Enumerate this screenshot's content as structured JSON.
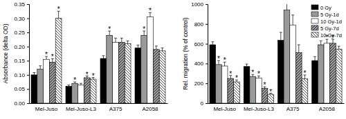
{
  "chart_data": [
    {
      "type": "bar",
      "y_label": "Absorbance (delta OD)",
      "categories": [
        "Mel-Juso",
        "Mel-Juso-L3",
        "A375",
        "A2058"
      ],
      "ylim": [
        0,
        0.35
      ],
      "yticks": [
        {
          "value": 0,
          "label": "0.00"
        },
        {
          "value": 0.05,
          "label": "0.05"
        },
        {
          "value": 0.1,
          "label": "0.10"
        },
        {
          "value": 0.15,
          "label": "0.15"
        },
        {
          "value": 0.2,
          "label": "0.20"
        },
        {
          "value": 0.25,
          "label": "0.25"
        },
        {
          "value": 0.3,
          "label": "0.30"
        },
        {
          "value": 0.35,
          "label": "0.35"
        }
      ],
      "series": [
        {
          "color": "#000000",
          "values": [
            0.1,
            0.06,
            0.158,
            0.195
          ],
          "errors": [
            0.008,
            0.004,
            0.01,
            0.01
          ],
          "significance": [
            null,
            null,
            null,
            null
          ]
        },
        {
          "color": "#999999",
          "values": [
            0.12,
            0.07,
            0.24,
            0.24
          ],
          "errors": [
            0.012,
            0.005,
            0.015,
            0.015
          ],
          "significance": [
            null,
            "*",
            "*",
            "*"
          ]
        },
        {
          "color": "#ffffff",
          "values": [
            0.155,
            0.065,
            0.215,
            0.305
          ],
          "errors": [
            0.01,
            0.005,
            0.015,
            0.015
          ],
          "significance": [
            "*",
            null,
            null,
            "*"
          ]
        },
        {
          "color": "#999999",
          "values": [
            0.145,
            0.09,
            0.215,
            0.19
          ],
          "errors": [
            0.012,
            0.006,
            0.015,
            0.012
          ],
          "significance": [
            "*",
            "*",
            null,
            null
          ]
        },
        {
          "color": "#ffffff",
          "values": [
            0.3,
            0.085,
            0.21,
            0.185
          ],
          "errors": [
            0.025,
            0.006,
            0.01,
            0.01
          ],
          "significance": [
            "*",
            "*",
            null,
            null
          ]
        }
      ]
    },
    {
      "type": "bar",
      "y_label": "Rel. migration (% of control)",
      "categories": [
        "Mel-Juso",
        "Mel-Juso-L3",
        "A375",
        "A2058"
      ],
      "ylim": [
        0,
        1000
      ],
      "yticks": [
        0,
        200,
        400,
        600,
        800,
        1000
      ],
      "legend": "upper right",
      "series": [
        {
          "name": "0 Gy",
          "color": "#000000",
          "values": [
            590,
            370,
            635,
            430
          ],
          "errors": [
            30,
            25,
            80,
            40
          ],
          "significance": [
            null,
            null,
            null,
            null
          ]
        },
        {
          "name": "5 Gy-1d",
          "color": "#999999",
          "values": [
            390,
            270,
            940,
            590
          ],
          "errors": [
            40,
            20,
            100,
            40
          ],
          "significance": [
            "*",
            "*",
            null,
            null
          ]
        },
        {
          "name": "10 Gy-1d",
          "color": "#ffffff",
          "values": [
            375,
            255,
            790,
            605
          ],
          "errors": [
            40,
            20,
            100,
            40
          ],
          "significance": [
            "*",
            "*",
            null,
            "*"
          ]
        },
        {
          "name": "5 Gy-7d",
          "color": "#999999",
          "values": [
            250,
            150,
            510,
            605
          ],
          "errors": [
            30,
            15,
            80,
            40
          ],
          "significance": [
            "*",
            "*",
            null,
            "*"
          ]
        },
        {
          "name": "10 Gy-7d",
          "color": "#ffffff",
          "values": [
            215,
            90,
            245,
            545
          ],
          "errors": [
            20,
            10,
            40,
            30
          ],
          "significance": [
            "*",
            "*",
            "*",
            null
          ]
        }
      ]
    }
  ]
}
